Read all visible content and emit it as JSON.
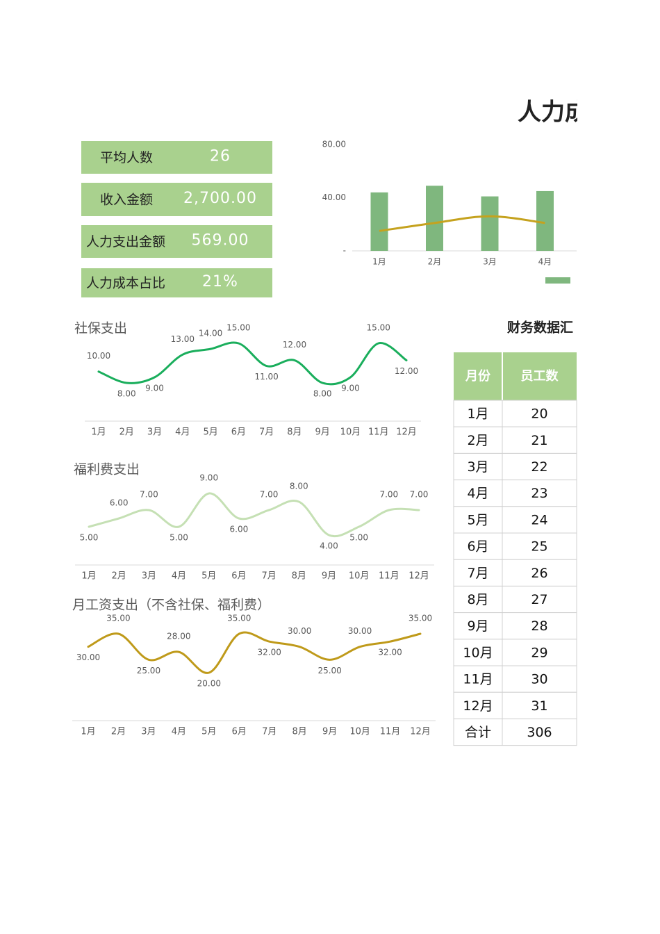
{
  "title": "人力成",
  "kpis": [
    {
      "label": "平均人数",
      "value": "26"
    },
    {
      "label": "收入金额",
      "value": "2,700.00"
    },
    {
      "label": "人力支出金额",
      "value": "569.00"
    },
    {
      "label": "人力成本占比",
      "value": "21%"
    }
  ],
  "table": {
    "title": "财务数据汇",
    "header": [
      "月份",
      "员工数"
    ],
    "rows": [
      [
        "1月",
        20
      ],
      [
        "2月",
        21
      ],
      [
        "3月",
        22
      ],
      [
        "4月",
        23
      ],
      [
        "5月",
        24
      ],
      [
        "6月",
        25
      ],
      [
        "7月",
        26
      ],
      [
        "8月",
        27
      ],
      [
        "9月",
        28
      ],
      [
        "10月",
        29
      ],
      [
        "11月",
        30
      ],
      [
        "12月",
        31
      ],
      [
        "合计",
        306
      ]
    ]
  },
  "chart_data": [
    {
      "type": "bar",
      "categories": [
        "1月",
        "2月",
        "3月",
        "4月"
      ],
      "ylim": [
        0,
        80
      ],
      "yticks": [
        {
          "value": 80,
          "label": "80.00"
        },
        {
          "value": 40,
          "label": "40.00"
        },
        {
          "value": 0,
          "label": "-"
        }
      ],
      "series": [
        {
          "color": "#7fb77e",
          "values": [
            44,
            49,
            41,
            45
          ]
        },
        {
          "type": "line",
          "color": "#c5a21e",
          "values": [
            15,
            21,
            26,
            21
          ]
        }
      ]
    },
    {
      "type": "line",
      "title": "社保支出",
      "color": "#1aae5c",
      "categories": [
        "1月",
        "2月",
        "3月",
        "4月",
        "5月",
        "6月",
        "7月",
        "8月",
        "9月",
        "10月",
        "11月",
        "12月"
      ],
      "values": [
        10,
        8,
        9,
        13,
        14,
        15,
        11,
        12,
        8,
        9,
        15,
        12
      ],
      "value_labels": [
        "10.00",
        "8.00",
        "9.00",
        "13.00",
        "14.00",
        "15.00",
        "11.00",
        "12.00",
        "8.00",
        "9.00",
        "15.00",
        "12.00"
      ]
    },
    {
      "type": "line",
      "title": "福利费支出",
      "color": "#c5e0b4",
      "categories": [
        "1月",
        "2月",
        "3月",
        "4月",
        "5月",
        "6月",
        "7月",
        "8月",
        "9月",
        "10月",
        "11月",
        "12月"
      ],
      "values": [
        5,
        6,
        7,
        5,
        9,
        6,
        7,
        8,
        4,
        5,
        7,
        7
      ],
      "value_labels": [
        "5.00",
        "6.00",
        "7.00",
        "5.00",
        "9.00",
        "6.00",
        "7.00",
        "8.00",
        "4.00",
        "5.00",
        "7.00",
        "7.00"
      ]
    },
    {
      "type": "line",
      "title": "月工资支出（不含社保、福利费）",
      "color": "#bf9a1a",
      "categories": [
        "1月",
        "2月",
        "3月",
        "4月",
        "5月",
        "6月",
        "7月",
        "8月",
        "9月",
        "10月",
        "11月",
        "12月"
      ],
      "values": [
        30,
        35,
        25,
        28,
        20,
        35,
        32,
        30,
        25,
        30,
        32,
        35
      ],
      "value_labels": [
        "30.00",
        "35.00",
        "25.00",
        "28.00",
        "20.00",
        "35.00",
        "32.00",
        "30.00",
        "25.00",
        "30.00",
        "32.00",
        "35.00"
      ]
    }
  ]
}
